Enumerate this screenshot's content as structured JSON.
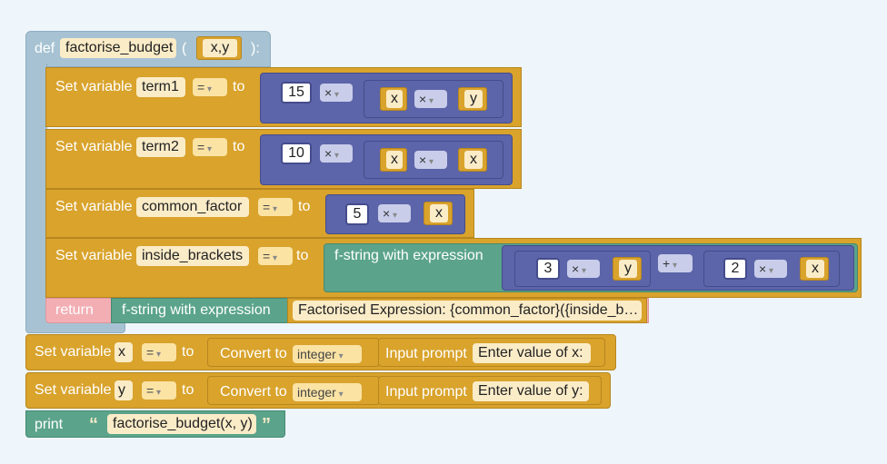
{
  "func": {
    "def_label": "def",
    "name": "factorise_budget",
    "paren_open": "(",
    "paren_close": "):",
    "params": "x,y"
  },
  "rows": {
    "term1": {
      "set_label": "Set variable",
      "var": "term1",
      "op": "=",
      "to": "to",
      "num": "15",
      "mul": "×",
      "inner_left": "x",
      "inner_op": "×",
      "inner_right": "y"
    },
    "term2": {
      "set_label": "Set variable",
      "var": "term2",
      "op": "=",
      "to": "to",
      "num": "10",
      "mul": "×",
      "inner_left": "x",
      "inner_op": "×",
      "inner_right": "x"
    },
    "common": {
      "set_label": "Set variable",
      "var": "common_factor",
      "op": "=",
      "to": "to",
      "num": "5",
      "mul": "×",
      "right": "x"
    },
    "inside": {
      "set_label": "Set variable",
      "var": "inside_brackets",
      "op": "=",
      "to": "to",
      "fstring": "f-string with expression",
      "num1": "3",
      "mul1": "×",
      "var1": "y",
      "plus": "+",
      "num2": "2",
      "mul2": "×",
      "var2": "x"
    }
  },
  "ret": {
    "label": "return",
    "fstring": "f-string with expression",
    "text": "Factorised Expression: {common_factor}({inside_b…"
  },
  "setx": {
    "set_label": "Set variable",
    "var": "x",
    "op": "=",
    "to": "to",
    "convert": "Convert to",
    "type": "integer",
    "input": "Input prompt",
    "prompt": "Enter value of x:"
  },
  "sety": {
    "set_label": "Set variable",
    "var": "y",
    "op": "=",
    "to": "to",
    "convert": "Convert to",
    "type": "integer",
    "input": "Input prompt",
    "prompt": "Enter value of y:"
  },
  "print": {
    "label": "print",
    "open_quote": "“",
    "text": "factorise_budget(x, y)",
    "close_quote": "”"
  }
}
